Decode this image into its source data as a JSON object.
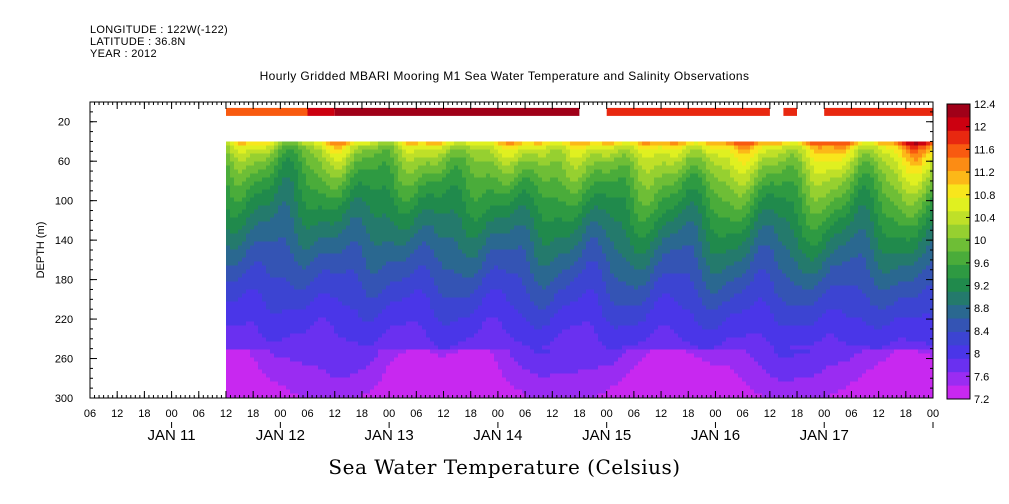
{
  "header": {
    "longitude": "LONGITUDE : 122W(-122)",
    "latitude": "LATITUDE : 36.8N",
    "year": "YEAR : 2012"
  },
  "chart_data": {
    "type": "heatmap",
    "title": "Hourly Gridded MBARI Mooring M1 Sea Water Temperature and Salinity Observations",
    "xlabel": "Sea Water Temperature (Celsius)",
    "ylabel": "DEPTH (m)",
    "y_axis": {
      "range": [
        0,
        300
      ],
      "inverted": true,
      "ticks": [
        20,
        60,
        100,
        140,
        180,
        220,
        260,
        300
      ]
    },
    "x_axis": {
      "start": "2012-01-10T06:00",
      "end": "2012-01-18T00:00",
      "hour_ticks": [
        "06",
        "12",
        "18",
        "00",
        "06",
        "12",
        "18",
        "00",
        "06",
        "12",
        "18",
        "00",
        "06",
        "12",
        "18",
        "00",
        "06",
        "12",
        "18",
        "00",
        "06",
        "12",
        "18",
        "00",
        "06",
        "12",
        "18",
        "00",
        "06",
        "12",
        "18",
        "00"
      ],
      "day_labels": [
        "JAN 11",
        "JAN 12",
        "JAN 13",
        "JAN 14",
        "JAN 15",
        "JAN 16",
        "JAN 17"
      ]
    },
    "colorbar": {
      "levels": [
        "12.4",
        "12",
        "11.6",
        "11.2",
        "10.8",
        "10.4",
        "10",
        "9.6",
        "9.2",
        "8.8",
        "8.4",
        "8",
        "7.6",
        "7.2"
      ],
      "colors": [
        "#a00018",
        "#cc0010",
        "#e82810",
        "#f85a10",
        "#fc8c14",
        "#fcb818",
        "#f8e61c",
        "#e0f020",
        "#bfe028",
        "#96d030",
        "#6ebe36",
        "#4aac3a",
        "#2e9a42",
        "#208a4c",
        "#247a6c",
        "#2a6890",
        "#3454b4",
        "#3c44d2",
        "#4a36e8",
        "#6a30f0",
        "#9a2cf2",
        "#c828f0"
      ]
    },
    "data_start": "2012-01-11T12:00",
    "data_end": "2012-01-18T00:00",
    "surface_depth_m": 10,
    "data_top_depth_m": 40,
    "grid_ylim": [
      40,
      300
    ]
  }
}
